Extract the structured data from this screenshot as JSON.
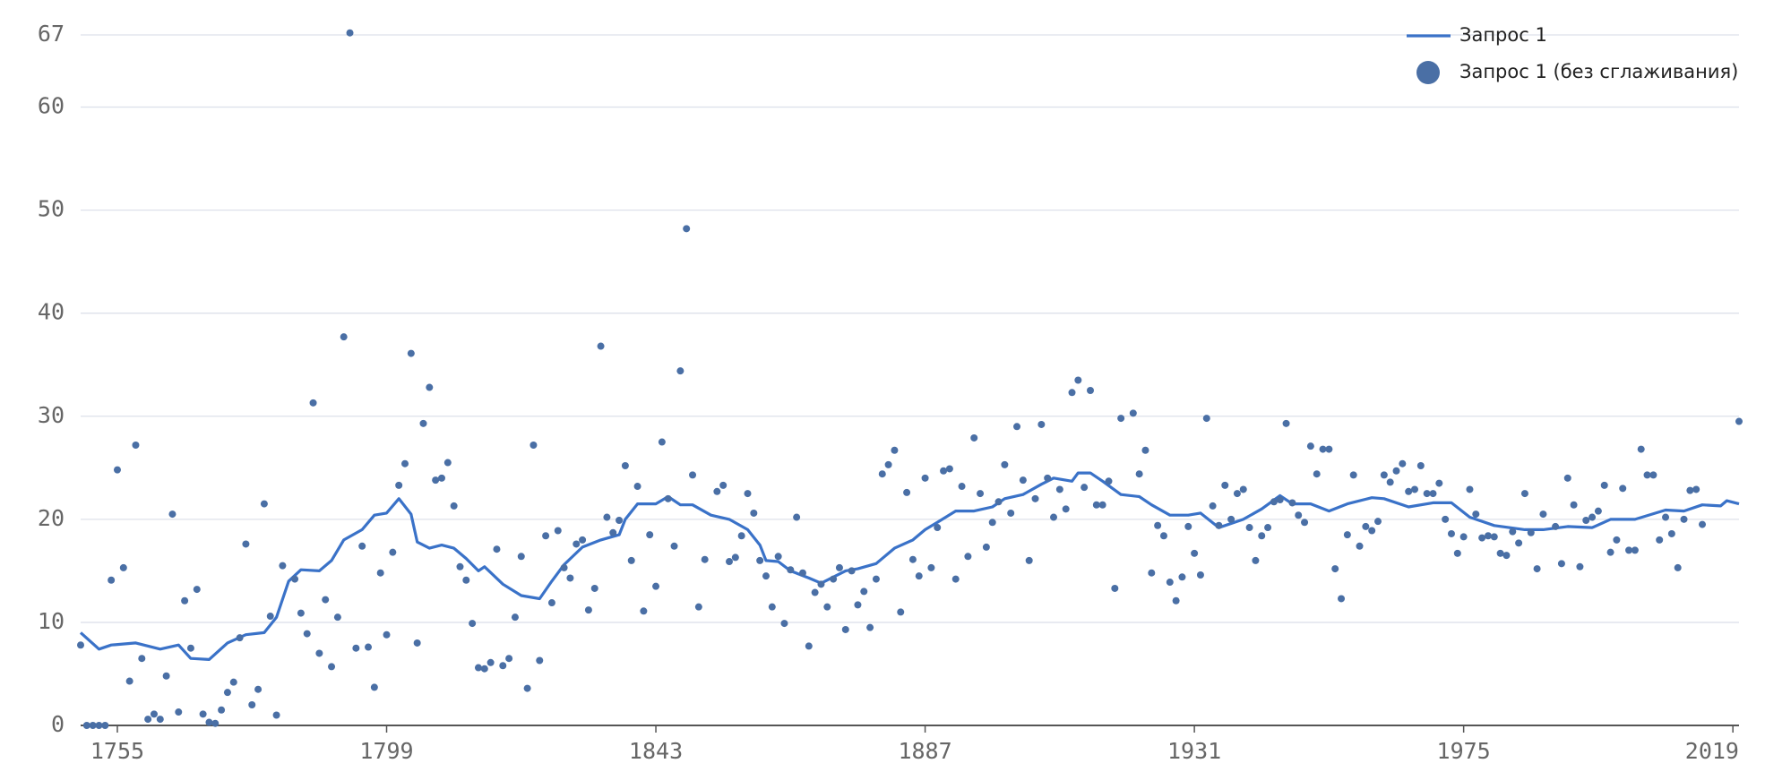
{
  "chart_data": {
    "type": "line",
    "xlim": [
      1749,
      2020
    ],
    "xticks": [
      1755,
      1799,
      1843,
      1887,
      1931,
      1975,
      2019
    ],
    "ylim": [
      0,
      67
    ],
    "yticks": [
      0,
      10,
      20,
      30,
      40,
      50,
      60,
      67
    ],
    "grid": true,
    "legend": "top-right",
    "series": [
      {
        "name": "Запрос 1",
        "type": "line",
        "color": "#3a72c8",
        "x": [
          1749,
          1752,
          1754,
          1758,
          1762,
          1765,
          1767,
          1770,
          1773,
          1776,
          1779,
          1781,
          1783,
          1785,
          1788,
          1790,
          1792,
          1795,
          1797,
          1799,
          1801,
          1803,
          1804,
          1806,
          1808,
          1810,
          1812,
          1814,
          1815,
          1818,
          1821,
          1824,
          1826,
          1828,
          1831,
          1834,
          1837,
          1838,
          1840,
          1843,
          1845,
          1847,
          1849,
          1852,
          1855,
          1858,
          1860,
          1861,
          1863,
          1865,
          1868,
          1870,
          1874,
          1876,
          1879,
          1882,
          1885,
          1887,
          1889,
          1892,
          1895,
          1898,
          1900,
          1903,
          1906,
          1908,
          1911,
          1912,
          1914,
          1916,
          1919,
          1922,
          1924,
          1927,
          1930,
          1932,
          1935,
          1936,
          1939,
          1942,
          1945,
          1947,
          1950,
          1953,
          1956,
          1960,
          1962,
          1966,
          1970,
          1973,
          1976,
          1980,
          1985,
          1988,
          1992,
          1996,
          1999,
          2003,
          2008,
          2011,
          2014,
          2017,
          2018,
          2020
        ],
        "values": [
          9,
          7.4,
          7.8,
          8,
          7.4,
          7.8,
          6.5,
          6.4,
          8,
          8.8,
          9,
          10.5,
          14,
          15.1,
          15,
          16,
          18,
          19,
          20.4,
          20.6,
          22,
          20.5,
          17.8,
          17.2,
          17.5,
          17.2,
          16.2,
          15,
          15.4,
          13.7,
          12.6,
          12.3,
          14,
          15.6,
          17.3,
          18,
          18.5,
          20,
          21.5,
          21.5,
          22.2,
          21.4,
          21.4,
          20.4,
          20,
          19,
          17.5,
          16,
          15.9,
          15,
          14.3,
          13.8,
          15,
          15.2,
          15.7,
          17.2,
          18,
          19,
          19.7,
          20.8,
          20.8,
          21.2,
          22,
          22.4,
          23.4,
          24,
          23.7,
          24.5,
          24.5,
          23.7,
          22.4,
          22.2,
          21.4,
          20.4,
          20.4,
          20.6,
          19.2,
          19.4,
          20,
          21,
          22.3,
          21.5,
          21.5,
          20.8,
          21.5,
          22.1,
          22,
          21.2,
          21.6,
          21.6,
          20.2,
          19.4,
          19,
          19,
          19.3,
          19.2,
          20,
          20,
          20.9,
          20.8,
          21.4,
          21.3,
          21.8,
          21.5
        ]
      },
      {
        "name": "Запрос 1 (без сглаживания)",
        "type": "scatter",
        "color": "#4a6fa5",
        "x": [
          1749,
          1750,
          1751,
          1752,
          1753,
          1754,
          1755,
          1756,
          1757,
          1758,
          1759,
          1760,
          1761,
          1762,
          1763,
          1764,
          1765,
          1766,
          1767,
          1768,
          1769,
          1770,
          1771,
          1772,
          1773,
          1774,
          1775,
          1776,
          1777,
          1778,
          1779,
          1780,
          1781,
          1782,
          1784,
          1785,
          1786,
          1787,
          1788,
          1789,
          1790,
          1791,
          1792,
          1793,
          1794,
          1795,
          1796,
          1797,
          1798,
          1799,
          1800,
          1801,
          1802,
          1803,
          1804,
          1805,
          1806,
          1807,
          1808,
          1809,
          1810,
          1811,
          1812,
          1813,
          1814,
          1815,
          1816,
          1817,
          1818,
          1819,
          1820,
          1821,
          1822,
          1823,
          1824,
          1825,
          1826,
          1827,
          1828,
          1829,
          1830,
          1831,
          1832,
          1833,
          1834,
          1835,
          1836,
          1837,
          1838,
          1839,
          1840,
          1841,
          1842,
          1843,
          1844,
          1845,
          1846,
          1847,
          1848,
          1849,
          1850,
          1851,
          1853,
          1854,
          1855,
          1856,
          1857,
          1858,
          1859,
          1860,
          1861,
          1862,
          1863,
          1864,
          1865,
          1866,
          1867,
          1868,
          1869,
          1870,
          1871,
          1872,
          1873,
          1874,
          1875,
          1876,
          1877,
          1878,
          1879,
          1880,
          1881,
          1882,
          1883,
          1884,
          1885,
          1886,
          1887,
          1888,
          1889,
          1890,
          1891,
          1892,
          1893,
          1894,
          1895,
          1896,
          1897,
          1898,
          1899,
          1900,
          1901,
          1902,
          1903,
          1904,
          1905,
          1906,
          1907,
          1908,
          1909,
          1910,
          1911,
          1912,
          1913,
          1914,
          1915,
          1916,
          1917,
          1918,
          1919,
          1921,
          1922,
          1923,
          1924,
          1925,
          1926,
          1927,
          1928,
          1929,
          1930,
          1931,
          1932,
          1933,
          1934,
          1935,
          1936,
          1937,
          1938,
          1939,
          1940,
          1941,
          1942,
          1943,
          1944,
          1945,
          1946,
          1947,
          1948,
          1949,
          1950,
          1951,
          1952,
          1953,
          1954,
          1955,
          1956,
          1957,
          1958,
          1959,
          1960,
          1961,
          1962,
          1963,
          1964,
          1965,
          1966,
          1967,
          1968,
          1969,
          1970,
          1971,
          1972,
          1973,
          1974,
          1975,
          1976,
          1977,
          1978,
          1979,
          1980,
          1981,
          1982,
          1983,
          1984,
          1985,
          1986,
          1987,
          1988,
          1990,
          1991,
          1992,
          1993,
          1994,
          1995,
          1996,
          1997,
          1998,
          1999,
          2000,
          2001,
          2002,
          2003,
          2004,
          2005,
          2006,
          2007,
          2008,
          2009,
          2010,
          2011,
          2012,
          2013,
          2014,
          2020
        ],
        "values": [
          7.8,
          0,
          0,
          0,
          0,
          14.1,
          24.8,
          15.3,
          4.3,
          27.2,
          6.5,
          0.6,
          1.1,
          0.6,
          4.8,
          20.5,
          1.3,
          12.1,
          7.5,
          13.2,
          1.1,
          0.3,
          0.2,
          1.5,
          3.2,
          4.2,
          8.5,
          17.6,
          2,
          3.5,
          21.5,
          10.6,
          1,
          15.5,
          14.2,
          10.9,
          8.9,
          31.3,
          7,
          12.2,
          5.7,
          10.5,
          37.7,
          67.2,
          7.5,
          17.4,
          7.6,
          3.7,
          14.8,
          8.8,
          16.8,
          23.3,
          25.4,
          36.1,
          8,
          29.3,
          32.8,
          23.8,
          24,
          25.5,
          21.3,
          15.4,
          14.1,
          9.9,
          5.6,
          5.5,
          6.1,
          17.1,
          5.8,
          6.5,
          10.5,
          16.4,
          3.6,
          27.2,
          6.3,
          18.4,
          11.9,
          18.9,
          15.3,
          14.3,
          17.6,
          18,
          11.2,
          13.3,
          36.8,
          20.2,
          18.7,
          19.9,
          25.2,
          16,
          23.2,
          11.1,
          18.5,
          13.5,
          27.5,
          22,
          17.4,
          34.4,
          48.2,
          24.3,
          11.5,
          16.1,
          22.7,
          23.3,
          15.9,
          16.3,
          18.4,
          22.5,
          20.6,
          16,
          14.5,
          11.5,
          16.4,
          9.9,
          15.1,
          20.2,
          14.8,
          7.7,
          12.9,
          13.7,
          11.5,
          14.2,
          15.3,
          9.3,
          15,
          11.7,
          13,
          9.5,
          14.2,
          24.4,
          25.3,
          26.7,
          11,
          22.6,
          16.1,
          14.5,
          24,
          15.3,
          19.2,
          24.7,
          24.9,
          14.2,
          23.2,
          16.4,
          27.9,
          22.5,
          17.3,
          19.7,
          21.7,
          25.3,
          20.6,
          29,
          23.8,
          16,
          22,
          29.2,
          24,
          20.2,
          22.9,
          21,
          32.3,
          33.5,
          23.1,
          32.5,
          21.4,
          21.4,
          23.7,
          13.3,
          29.8,
          30.3,
          24.4,
          26.7,
          14.8,
          19.4,
          18.4,
          13.9,
          12.1,
          14.4,
          19.3,
          16.7,
          14.6,
          29.8,
          21.3,
          19.4,
          23.3,
          20,
          22.5,
          22.9,
          19.2,
          16,
          18.4,
          19.2,
          21.7,
          21.9,
          29.3,
          21.6,
          20.4,
          19.7,
          27.1,
          24.4,
          26.8,
          26.8,
          15.2,
          12.3,
          18.5,
          24.3,
          17.4,
          19.3,
          18.9,
          19.8,
          24.3,
          23.6,
          24.7,
          25.4,
          22.7,
          22.9,
          25.2,
          22.5,
          22.5,
          23.5,
          20,
          18.6,
          16.7,
          18.3,
          22.9,
          20.5,
          18.2,
          18.4,
          18.3,
          16.7,
          16.5,
          18.8,
          17.7,
          22.5,
          18.7,
          15.2,
          20.5,
          19.3,
          15.7,
          24,
          21.4,
          15.4,
          19.9,
          20.2,
          20.8,
          23.3,
          16.8,
          18,
          23,
          17,
          17,
          26.8,
          24.3,
          24.3,
          18,
          20.2,
          18.6,
          15.3,
          20,
          22.8,
          22.9,
          19.5,
          29.5
        ]
      }
    ]
  }
}
